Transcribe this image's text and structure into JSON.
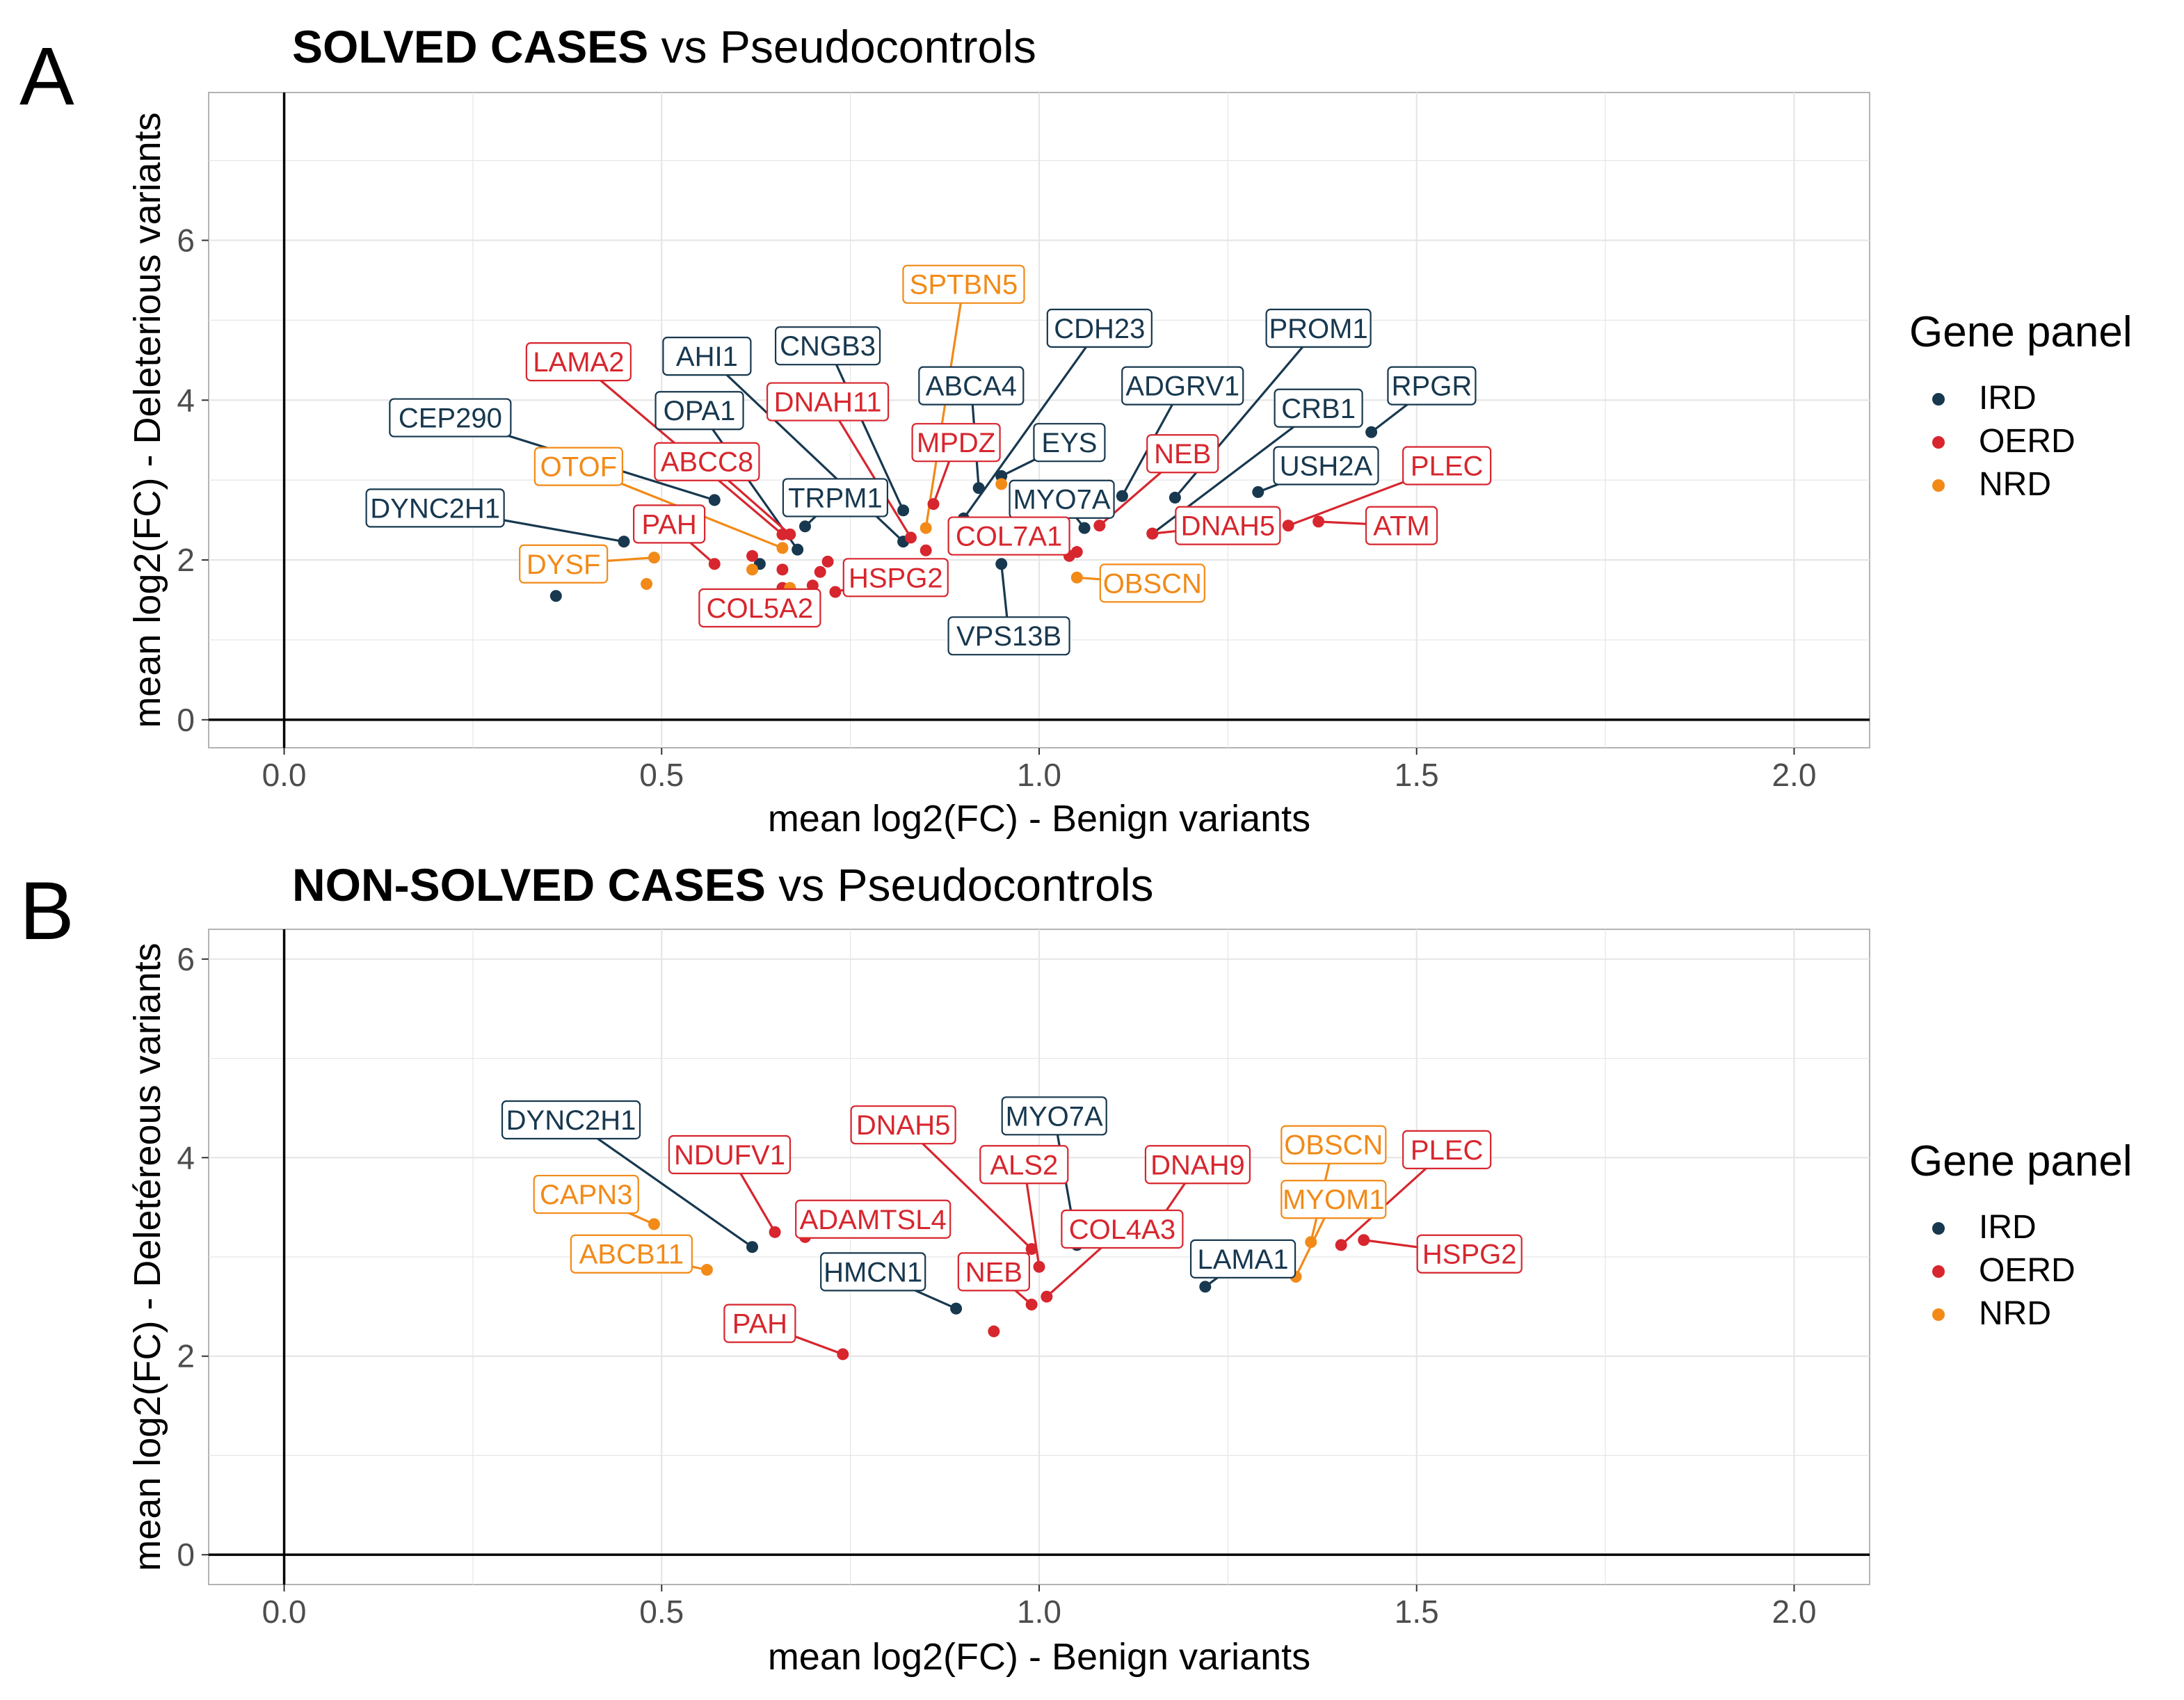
{
  "figure": {
    "colors": {
      "IRD": "#17384f",
      "OERD": "#d7262e",
      "NRD": "#f28a18"
    },
    "legend": {
      "title": "Gene panel",
      "entries": [
        "IRD",
        "OERD",
        "NRD"
      ]
    }
  },
  "chart_data": [
    {
      "type": "scatter",
      "panel": "A",
      "title_bold": "SOLVED CASES",
      "title_rest": " vs Pseudocontrols",
      "xlabel": "mean log2(FC) - Benign variants",
      "ylabel": "mean log2(FC) - Deleterious variants",
      "xlim": [
        -0.1,
        2.1
      ],
      "ylim": [
        -0.35,
        7.85
      ],
      "xticks": [
        0.0,
        0.5,
        1.0,
        1.5,
        2.0
      ],
      "xtick_labels": [
        "0.0",
        "0.5",
        "1.0",
        "1.5",
        "2.0"
      ],
      "yticks": [
        0,
        2,
        4,
        6
      ],
      "ytick_labels": [
        "0",
        "2",
        "4",
        "6"
      ],
      "points": [
        {
          "gene": "CEP290",
          "panel": "IRD",
          "x": 0.57,
          "y": 2.75,
          "lx": 0.22,
          "ly": 3.78
        },
        {
          "gene": "DYNC2H1",
          "panel": "IRD",
          "x": 0.45,
          "y": 2.23,
          "lx": 0.2,
          "ly": 2.65
        },
        {
          "gene": "AHI1",
          "panel": "IRD",
          "x": 0.82,
          "y": 2.23,
          "lx": 0.56,
          "ly": 4.55
        },
        {
          "gene": "CNGB3",
          "panel": "IRD",
          "x": 0.82,
          "y": 2.62,
          "lx": 0.72,
          "ly": 4.68
        },
        {
          "gene": "OPA1",
          "panel": "IRD",
          "x": 0.68,
          "y": 2.13,
          "lx": 0.55,
          "ly": 3.87
        },
        {
          "gene": "TRPM1",
          "panel": "IRD",
          "x": 0.69,
          "y": 2.42,
          "lx": 0.73,
          "ly": 2.78
        },
        {
          "gene": "ABCA4",
          "panel": "IRD",
          "x": 0.92,
          "y": 2.9,
          "lx": 0.91,
          "ly": 4.18
        },
        {
          "gene": "CDH23",
          "panel": "IRD",
          "x": 0.9,
          "y": 2.52,
          "lx": 1.08,
          "ly": 4.9
        },
        {
          "gene": "EYS",
          "panel": "IRD",
          "x": 0.95,
          "y": 3.05,
          "lx": 1.04,
          "ly": 3.47
        },
        {
          "gene": "MYO7A",
          "panel": "IRD",
          "x": 1.06,
          "y": 2.4,
          "lx": 1.03,
          "ly": 2.76
        },
        {
          "gene": "ADGRV1",
          "panel": "IRD",
          "x": 1.11,
          "y": 2.8,
          "lx": 1.19,
          "ly": 4.18
        },
        {
          "gene": "PROM1",
          "panel": "IRD",
          "x": 1.18,
          "y": 2.78,
          "lx": 1.37,
          "ly": 4.9
        },
        {
          "gene": "CRB1",
          "panel": "IRD",
          "x": 1.15,
          "y": 2.33,
          "lx": 1.37,
          "ly": 3.9
        },
        {
          "gene": "USH2A",
          "panel": "IRD",
          "x": 1.29,
          "y": 2.85,
          "lx": 1.38,
          "ly": 3.18
        },
        {
          "gene": "RPGR",
          "panel": "IRD",
          "x": 1.44,
          "y": 3.6,
          "lx": 1.52,
          "ly": 4.18
        },
        {
          "gene": "VPS13B",
          "panel": "IRD",
          "x": 0.95,
          "y": 1.95,
          "lx": 0.96,
          "ly": 1.05
        },
        {
          "gene": "",
          "panel": "IRD",
          "x": 0.36,
          "y": 1.55
        },
        {
          "gene": "",
          "panel": "IRD",
          "x": 0.63,
          "y": 1.95
        },
        {
          "gene": "LAMA2",
          "panel": "OERD",
          "x": 0.66,
          "y": 2.32,
          "lx": 0.39,
          "ly": 4.48
        },
        {
          "gene": "ABCC8",
          "panel": "OERD",
          "x": 0.67,
          "y": 2.32,
          "lx": 0.56,
          "ly": 3.23
        },
        {
          "gene": "PAH",
          "panel": "OERD",
          "x": 0.57,
          "y": 1.95,
          "lx": 0.51,
          "ly": 2.45
        },
        {
          "gene": "DNAH11",
          "panel": "OERD",
          "x": 0.83,
          "y": 2.28,
          "lx": 0.72,
          "ly": 3.98
        },
        {
          "gene": "MPDZ",
          "panel": "OERD",
          "x": 0.86,
          "y": 2.7,
          "lx": 0.89,
          "ly": 3.47
        },
        {
          "gene": "COL7A1",
          "panel": "OERD",
          "x": 1.04,
          "y": 2.05,
          "lx": 0.96,
          "ly": 2.3
        },
        {
          "gene": "NEB",
          "panel": "OERD",
          "x": 1.08,
          "y": 2.43,
          "lx": 1.19,
          "ly": 3.33
        },
        {
          "gene": "DNAH5",
          "panel": "OERD",
          "x": 1.15,
          "y": 2.33,
          "lx": 1.25,
          "ly": 2.43
        },
        {
          "gene": "PLEC",
          "panel": "OERD",
          "x": 1.33,
          "y": 2.43,
          "lx": 1.54,
          "ly": 3.18
        },
        {
          "gene": "ATM",
          "panel": "OERD",
          "x": 1.37,
          "y": 2.48,
          "lx": 1.48,
          "ly": 2.43
        },
        {
          "gene": "HSPG2",
          "panel": "OERD",
          "x": 0.73,
          "y": 1.6,
          "lx": 0.81,
          "ly": 1.78
        },
        {
          "gene": "COL5A2",
          "panel": "OERD",
          "x": 0.66,
          "y": 1.65,
          "lx": 0.63,
          "ly": 1.4
        },
        {
          "gene": "",
          "panel": "OERD",
          "x": 0.62,
          "y": 2.05
        },
        {
          "gene": "",
          "panel": "OERD",
          "x": 0.66,
          "y": 1.88
        },
        {
          "gene": "",
          "panel": "OERD",
          "x": 0.71,
          "y": 1.85
        },
        {
          "gene": "",
          "panel": "OERD",
          "x": 0.72,
          "y": 1.98
        },
        {
          "gene": "",
          "panel": "OERD",
          "x": 0.7,
          "y": 1.68
        },
        {
          "gene": "",
          "panel": "OERD",
          "x": 1.05,
          "y": 2.1
        },
        {
          "gene": "",
          "panel": "OERD",
          "x": 0.85,
          "y": 2.12
        },
        {
          "gene": "SPTBN5",
          "panel": "NRD",
          "x": 0.85,
          "y": 2.4,
          "lx": 0.9,
          "ly": 5.45
        },
        {
          "gene": "OTOF",
          "panel": "NRD",
          "x": 0.66,
          "y": 2.15,
          "lx": 0.39,
          "ly": 3.17
        },
        {
          "gene": "DYSF",
          "panel": "NRD",
          "x": 0.49,
          "y": 2.03,
          "lx": 0.37,
          "ly": 1.95
        },
        {
          "gene": "OBSCN",
          "panel": "NRD",
          "x": 1.05,
          "y": 1.78,
          "lx": 1.15,
          "ly": 1.71
        },
        {
          "gene": "",
          "panel": "NRD",
          "x": 0.48,
          "y": 1.7
        },
        {
          "gene": "",
          "panel": "NRD",
          "x": 0.62,
          "y": 1.88
        },
        {
          "gene": "",
          "panel": "NRD",
          "x": 0.67,
          "y": 1.65
        },
        {
          "gene": "",
          "panel": "NRD",
          "x": 0.95,
          "y": 2.95
        }
      ]
    },
    {
      "type": "scatter",
      "panel": "B",
      "title_bold": "NON-SOLVED CASES",
      "title_rest": " vs Pseudocontrols",
      "xlabel": "mean log2(FC) - Benign variants",
      "ylabel": "mean log2(FC) - Deletéreous variants",
      "xlim": [
        -0.1,
        2.1
      ],
      "ylim": [
        -0.3,
        6.3
      ],
      "xticks": [
        0.0,
        0.5,
        1.0,
        1.5,
        2.0
      ],
      "xtick_labels": [
        "0.0",
        "0.5",
        "1.0",
        "1.5",
        "2.0"
      ],
      "yticks": [
        0,
        2,
        4,
        6
      ],
      "ytick_labels": [
        "0",
        "2",
        "4",
        "6"
      ],
      "points": [
        {
          "gene": "DYNC2H1",
          "panel": "IRD",
          "x": 0.62,
          "y": 3.1,
          "lx": 0.38,
          "ly": 4.38
        },
        {
          "gene": "MYO7A",
          "panel": "IRD",
          "x": 1.05,
          "y": 3.12,
          "lx": 1.02,
          "ly": 4.42
        },
        {
          "gene": "HMCN1",
          "panel": "IRD",
          "x": 0.89,
          "y": 2.48,
          "lx": 0.78,
          "ly": 2.85
        },
        {
          "gene": "LAMA1",
          "panel": "IRD",
          "x": 1.22,
          "y": 2.7,
          "lx": 1.27,
          "ly": 2.98
        },
        {
          "gene": "NDUFV1",
          "panel": "OERD",
          "x": 0.65,
          "y": 3.25,
          "lx": 0.59,
          "ly": 4.03
        },
        {
          "gene": "DNAH5",
          "panel": "OERD",
          "x": 0.99,
          "y": 3.08,
          "lx": 0.82,
          "ly": 4.33
        },
        {
          "gene": "ALS2",
          "panel": "OERD",
          "x": 1.0,
          "y": 2.9,
          "lx": 0.98,
          "ly": 3.93
        },
        {
          "gene": "DNAH9",
          "panel": "OERD",
          "x": 1.14,
          "y": 3.15,
          "lx": 1.21,
          "ly": 3.93
        },
        {
          "gene": "ADAMTSL4",
          "panel": "OERD",
          "x": 0.69,
          "y": 3.2,
          "lx": 0.78,
          "ly": 3.38
        },
        {
          "gene": "COL4A3",
          "panel": "OERD",
          "x": 1.01,
          "y": 2.6,
          "lx": 1.11,
          "ly": 3.28
        },
        {
          "gene": "NEB",
          "panel": "OERD",
          "x": 0.99,
          "y": 2.52,
          "lx": 0.94,
          "ly": 2.85
        },
        {
          "gene": "PAH",
          "panel": "OERD",
          "x": 0.74,
          "y": 2.02,
          "lx": 0.63,
          "ly": 2.33
        },
        {
          "gene": "PLEC",
          "panel": "OERD",
          "x": 1.4,
          "y": 3.12,
          "lx": 1.54,
          "ly": 4.08
        },
        {
          "gene": "HSPG2",
          "panel": "OERD",
          "x": 1.43,
          "y": 3.17,
          "lx": 1.57,
          "ly": 3.03
        },
        {
          "gene": "",
          "panel": "OERD",
          "x": 0.94,
          "y": 2.25
        },
        {
          "gene": "OBSCN",
          "panel": "NRD",
          "x": 1.36,
          "y": 3.15,
          "lx": 1.39,
          "ly": 4.13
        },
        {
          "gene": "MYOM1",
          "panel": "NRD",
          "x": 1.34,
          "y": 2.8,
          "lx": 1.39,
          "ly": 3.58
        },
        {
          "gene": "CAPN3",
          "panel": "NRD",
          "x": 0.49,
          "y": 3.33,
          "lx": 0.4,
          "ly": 3.63
        },
        {
          "gene": "ABCB11",
          "panel": "NRD",
          "x": 0.56,
          "y": 2.87,
          "lx": 0.46,
          "ly": 3.03
        }
      ]
    }
  ]
}
